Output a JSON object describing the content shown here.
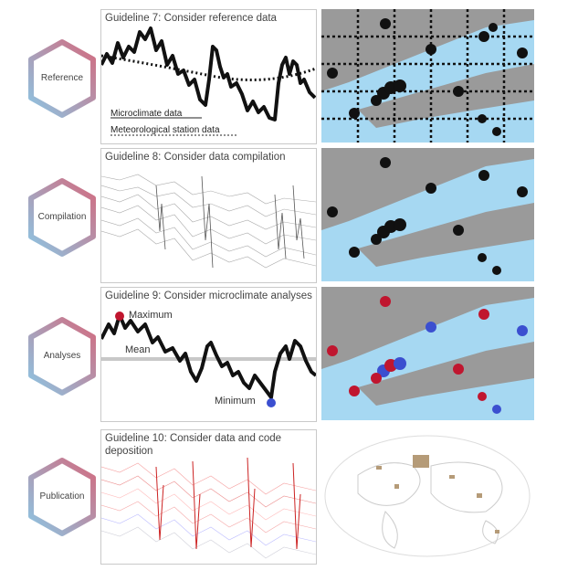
{
  "rows": [
    {
      "hex_label": "Reference",
      "title": "Guideline 7: Consider reference data"
    },
    {
      "hex_label": "Compilation",
      "title": "Guideline 8: Consider data compilation"
    },
    {
      "hex_label": "Analyses",
      "title": "Guideline 9: Consider microclimate analyses"
    },
    {
      "hex_label": "Publication",
      "title_line1": "Guideline 10: Consider data and code",
      "title_line2": "deposition"
    }
  ],
  "reference_legend": {
    "micro": "Microclimate data",
    "station": "Meteorological station data"
  },
  "analyses_labels": {
    "max": "Maximum",
    "mean": "Mean",
    "min": "Minimum"
  },
  "colors": {
    "hex_pink": "#d36b7f",
    "hex_blue": "#8cc6e4",
    "water": "#a6d8f2",
    "land": "#9a9a9a",
    "red": "#c0162f",
    "blue": "#3b4fd0"
  }
}
